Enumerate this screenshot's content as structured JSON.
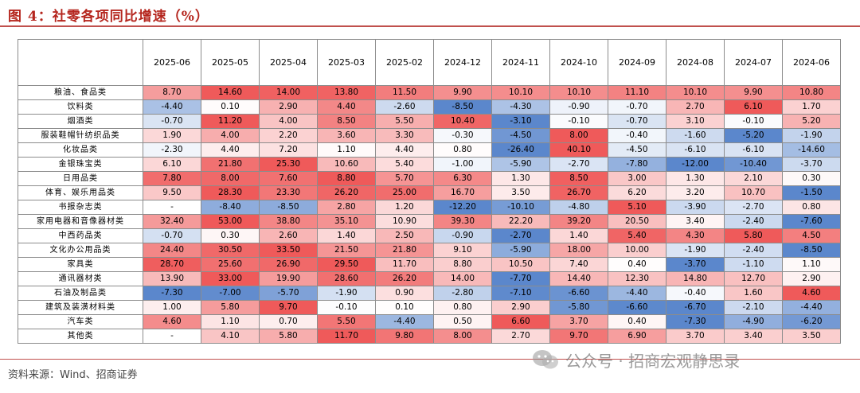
{
  "title": "图 4：社零各项同比增速（%）",
  "source": "资料来源：Wind、招商证券",
  "watermark": "公众号 · 招商宏观静思录",
  "colors": {
    "pos_max": "#ef5a5a",
    "neg_max": "#5b87cc",
    "neutral": "#ffffff",
    "title": "#b5261e",
    "rule": "#c0504d"
  },
  "chart_data": {
    "type": "heatmap",
    "columns": [
      "2025-06",
      "2025-05",
      "2025-04",
      "2025-03",
      "2025-02",
      "2024-12",
      "2024-11",
      "2024-10",
      "2024-09",
      "2024-08",
      "2024-07",
      "2024-06"
    ],
    "rows": [
      {
        "label": "粮油、食品类",
        "values": [
          "8.70",
          "14.60",
          "14.00",
          "13.80",
          "11.50",
          "9.90",
          "10.10",
          "10.10",
          "11.10",
          "10.10",
          "9.90",
          "10.80"
        ]
      },
      {
        "label": "饮料类",
        "values": [
          "-4.40",
          "0.10",
          "2.90",
          "4.40",
          "-2.60",
          "-8.50",
          "-4.30",
          "-0.90",
          "-0.70",
          "2.70",
          "6.10",
          "1.70"
        ]
      },
      {
        "label": "烟酒类",
        "values": [
          "-0.70",
          "11.20",
          "4.00",
          "8.50",
          "5.50",
          "10.40",
          "-3.10",
          "-0.10",
          "-0.70",
          "3.10",
          "-0.10",
          "5.20"
        ]
      },
      {
        "label": "服装鞋帽针纺织品类",
        "values": [
          "1.90",
          "4.00",
          "2.20",
          "3.60",
          "3.30",
          "-0.30",
          "-4.50",
          "8.00",
          "-0.40",
          "-1.60",
          "-5.20",
          "-1.90"
        ]
      },
      {
        "label": "化妆品类",
        "values": [
          "-2.30",
          "4.40",
          "7.20",
          "1.10",
          "4.40",
          "0.80",
          "-26.40",
          "40.10",
          "-4.50",
          "-6.10",
          "-6.10",
          "-14.60"
        ]
      },
      {
        "label": "金银珠宝类",
        "values": [
          "6.10",
          "21.80",
          "25.30",
          "10.60",
          "5.40",
          "-1.00",
          "-5.90",
          "-2.70",
          "-7.80",
          "-12.00",
          "-10.40",
          "-3.70"
        ]
      },
      {
        "label": "日用品类",
        "values": [
          "7.80",
          "8.00",
          "7.60",
          "8.80",
          "5.70",
          "6.30",
          "1.30",
          "8.50",
          "3.00",
          "1.30",
          "2.10",
          "0.30"
        ]
      },
      {
        "label": "体育、娱乐用品类",
        "values": [
          "9.50",
          "28.30",
          "23.30",
          "26.20",
          "25.00",
          "16.70",
          "3.50",
          "26.70",
          "6.20",
          "3.20",
          "10.70",
          "-1.50"
        ]
      },
      {
        "label": "书报杂志类",
        "values": [
          "-",
          "-8.40",
          "-8.50",
          "2.80",
          "1.20",
          "-12.20",
          "-10.10",
          "-4.80",
          "5.10",
          "-3.90",
          "-2.70",
          "0.80"
        ]
      },
      {
        "label": "家用电器和音像器材类",
        "values": [
          "32.40",
          "53.00",
          "38.80",
          "35.10",
          "10.90",
          "39.30",
          "22.20",
          "39.20",
          "20.50",
          "3.40",
          "-2.40",
          "-7.60"
        ]
      },
      {
        "label": "中西药品类",
        "values": [
          "-0.70",
          "0.30",
          "2.60",
          "1.40",
          "2.50",
          "-0.90",
          "-2.70",
          "1.40",
          "5.40",
          "4.30",
          "5.80",
          "4.50"
        ]
      },
      {
        "label": "文化办公用品类",
        "values": [
          "24.40",
          "30.50",
          "33.50",
          "21.50",
          "21.80",
          "9.10",
          "-5.90",
          "18.00",
          "10.00",
          "-1.90",
          "-2.40",
          "-8.50"
        ]
      },
      {
        "label": "家具类",
        "values": [
          "28.70",
          "25.60",
          "26.90",
          "29.50",
          "11.70",
          "8.80",
          "10.50",
          "7.40",
          "0.40",
          "-3.70",
          "-1.10",
          "1.10"
        ]
      },
      {
        "label": "通讯器材类",
        "values": [
          "13.90",
          "33.00",
          "19.90",
          "28.60",
          "26.20",
          "14.00",
          "-7.70",
          "14.40",
          "12.30",
          "14.80",
          "12.70",
          "2.90"
        ]
      },
      {
        "label": "石油及制品类",
        "values": [
          "-7.30",
          "-7.00",
          "-5.70",
          "-1.90",
          "0.90",
          "-2.80",
          "-7.10",
          "-6.60",
          "-4.40",
          "-0.40",
          "1.60",
          "4.60"
        ]
      },
      {
        "label": "建筑及装潢材料类",
        "values": [
          "1.00",
          "5.80",
          "9.70",
          "-0.10",
          "0.10",
          "0.80",
          "2.90",
          "-5.80",
          "-6.60",
          "-6.70",
          "-2.10",
          "-4.40"
        ]
      },
      {
        "label": "汽车类",
        "values": [
          "4.60",
          "1.10",
          "0.70",
          "5.50",
          "-4.40",
          "0.50",
          "6.60",
          "3.70",
          "0.40",
          "-7.30",
          "-4.90",
          "-6.20"
        ]
      },
      {
        "label": "其他类",
        "values": [
          "-",
          "4.10",
          "5.80",
          "11.70",
          "9.80",
          "8.00",
          "2.70",
          "9.70",
          "6.90",
          "3.70",
          "3.40",
          "3.50"
        ]
      }
    ]
  }
}
